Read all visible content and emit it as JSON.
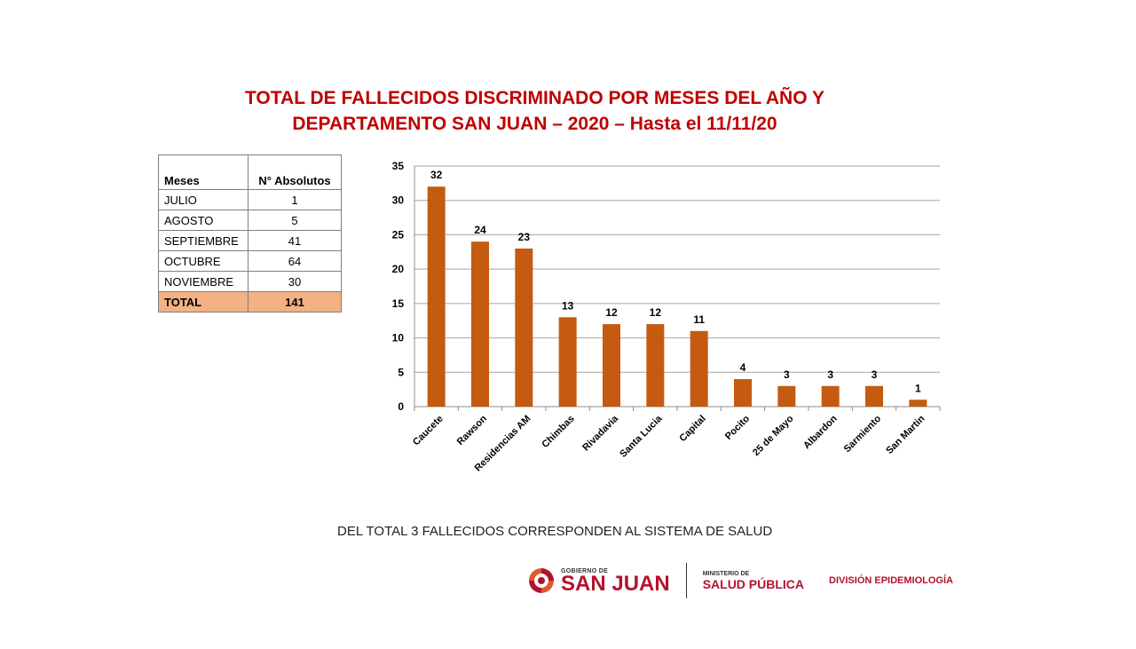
{
  "title": {
    "line1": "TOTAL DE FALLECIDOS DISCRIMINADO POR MESES DEL  AÑO Y",
    "line2": "DEPARTAMENTO SAN JUAN – 2020 – Hasta el 11/11/20"
  },
  "table": {
    "headers": [
      "Meses",
      "N° Absolutos"
    ],
    "rows": [
      {
        "mes": "JULIO",
        "valor": "1"
      },
      {
        "mes": "AGOSTO",
        "valor": "5"
      },
      {
        "mes": "SEPTIEMBRE",
        "valor": "41"
      },
      {
        "mes": "OCTUBRE",
        "valor": "64"
      },
      {
        "mes": "NOVIEMBRE",
        "valor": "30"
      }
    ],
    "total": {
      "label": "TOTAL",
      "valor": "141"
    }
  },
  "chart_data": {
    "type": "bar",
    "title": "",
    "xlabel": "",
    "ylabel": "",
    "categories": [
      "Caucete",
      "Rawson",
      "Residencias AM",
      "Chimbas",
      "Rivadavia",
      "Santa Lucia",
      "Capital",
      "Pocito",
      "25 de Mayo",
      "Albardon",
      "Sarmiento",
      "San Martin"
    ],
    "values": [
      32,
      24,
      23,
      13,
      12,
      12,
      11,
      4,
      3,
      3,
      3,
      1
    ],
    "ylim": [
      0,
      35
    ],
    "yticks": [
      0,
      5,
      10,
      15,
      20,
      25,
      30,
      35
    ],
    "grid": true,
    "bar_color": "#c55a11"
  },
  "footer_note": "DEL TOTAL 3 FALLECIDOS CORRESPONDEN AL SISTEMA DE SALUD",
  "logos": {
    "gobierno_small": "GOBIERNO DE",
    "gobierno_big": "SAN JUAN",
    "ministerio_small": "MINISTERIO DE",
    "ministerio_big": "SALUD PÚBLICA",
    "division": "DIVISIÓN EPIDEMIOLOGÍA"
  },
  "colors": {
    "title": "#c00000",
    "total_row": "#f4b183",
    "brand": "#b3122e"
  }
}
